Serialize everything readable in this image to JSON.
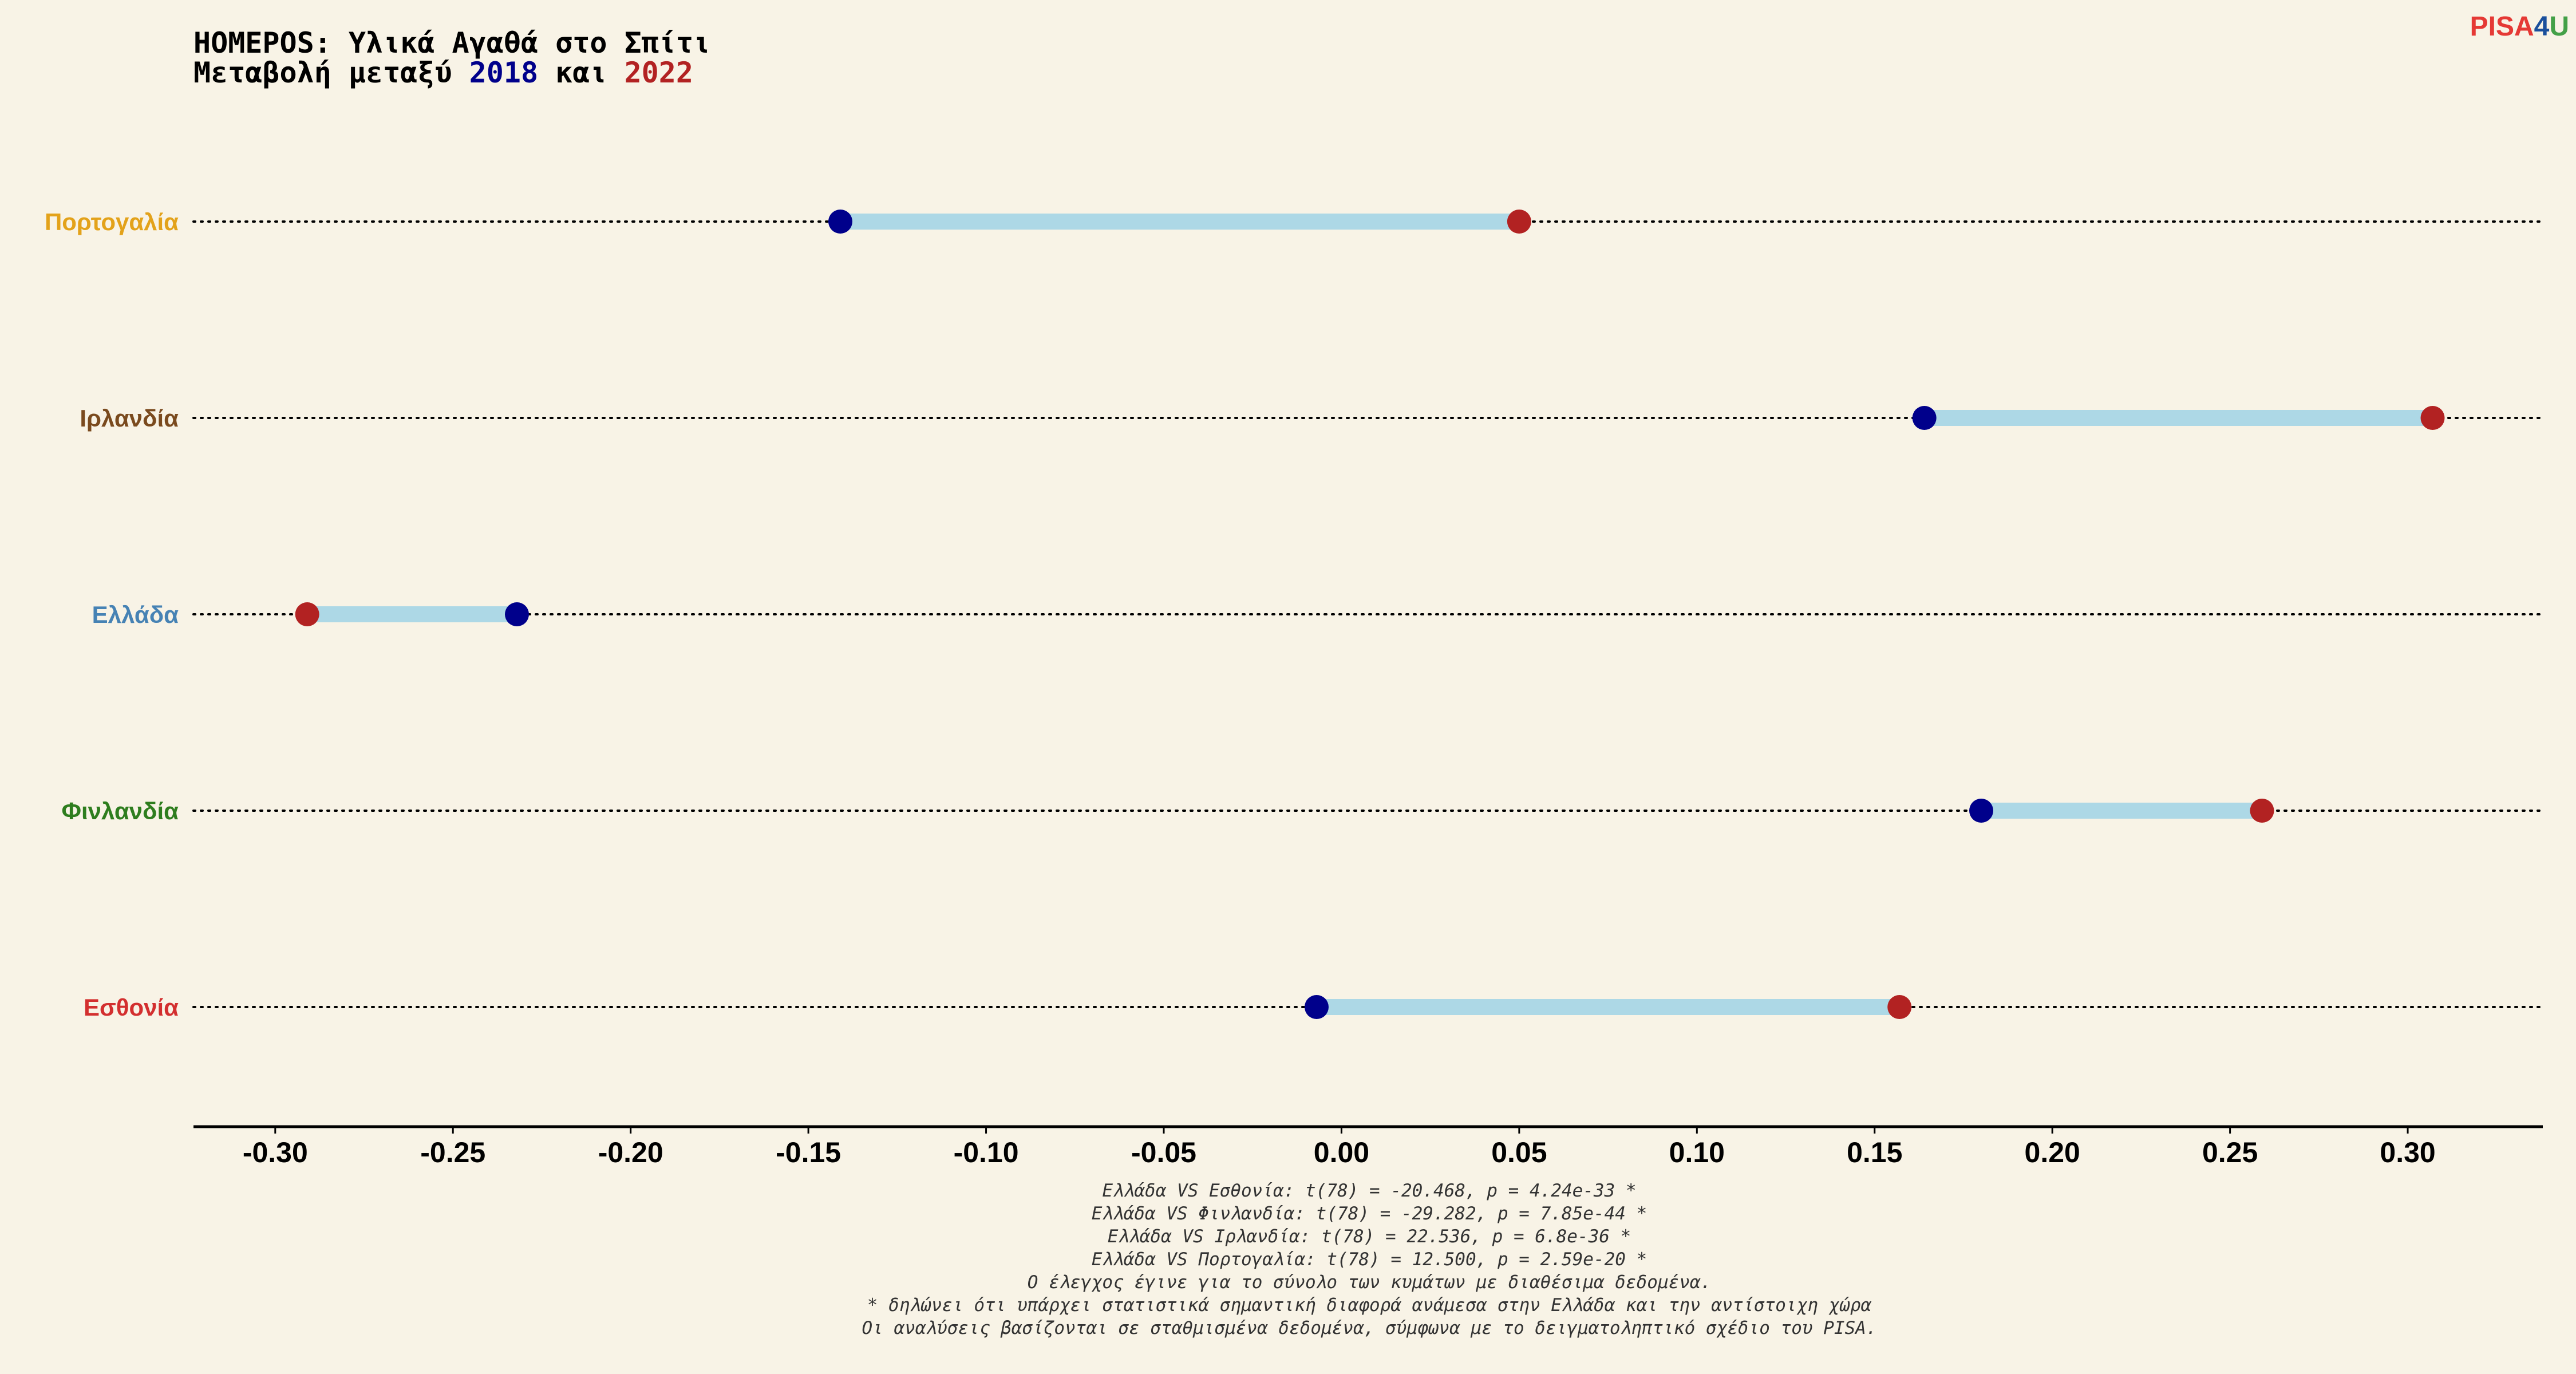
{
  "title": {
    "line1": "HOMEPOS: Υλικά Αγαθά στο Σπίτι",
    "line2_prefix": "Μεταβολή μεταξύ ",
    "year_start": "2018",
    "line2_mid": " και ",
    "year_end": "2022"
  },
  "logo": {
    "prefix": "PISA",
    "digit": "4",
    "suffix": "U",
    "colors": {
      "prefix": "#E53935",
      "digit": "#1A4F9C",
      "suffix": "#43A047"
    }
  },
  "colors": {
    "start": "#00008B",
    "end": "#B22222",
    "connector": "#ADD8E6",
    "guide": "#000000",
    "axis": "#000000"
  },
  "chart_data": {
    "type": "dumbbell",
    "title": "HOMEPOS: Υλικά Αγαθά στο Σπίτι — Μεταβολή μεταξύ 2018 και 2022",
    "xlim": [
      -0.323,
      0.338
    ],
    "xticks": [
      -0.3,
      -0.25,
      -0.2,
      -0.15,
      -0.1,
      -0.05,
      0.0,
      0.05,
      0.1,
      0.15,
      0.2,
      0.25,
      0.3
    ],
    "xtick_labels": [
      "-0.30",
      "-0.25",
      "-0.20",
      "-0.15",
      "-0.10",
      "-0.05",
      "0.00",
      "0.05",
      "0.10",
      "0.15",
      "0.20",
      "0.25",
      "0.30"
    ],
    "grid": false,
    "guide_lines": "dotted",
    "series_names": [
      "2018",
      "2022"
    ],
    "categories": [
      {
        "name": "Πορτογαλία",
        "color": "#E3A21A",
        "v2018": -0.141,
        "v2022": 0.05
      },
      {
        "name": "Ιρλανδία",
        "color": "#7A4A1E",
        "v2018": 0.164,
        "v2022": 0.307
      },
      {
        "name": "Ελλάδα",
        "color": "#4682B4",
        "v2018": -0.232,
        "v2022": -0.291
      },
      {
        "name": "Φινλανδία",
        "color": "#2E7D1E",
        "v2018": 0.18,
        "v2022": 0.259
      },
      {
        "name": "Εσθονία",
        "color": "#D32F2F",
        "v2018": -0.007,
        "v2022": 0.157
      }
    ]
  },
  "notes": [
    "Ελλάδα VS Εσθονία: t(78) = -20.468, p = 4.24e-33 *",
    "Ελλάδα VS Φινλανδία: t(78) = -29.282, p = 7.85e-44 *",
    "Ελλάδα VS Ιρλανδία: t(78) = 22.536, p = 6.8e-36 *",
    "Ελλάδα VS Πορτογαλία: t(78) = 12.500, p = 2.59e-20 *",
    "Ο έλεγχος έγινε για το σύνολο των κυμάτων με διαθέσιμα δεδομένα.",
    "* δηλώνει ότι υπάρχει στατιστικά σημαντική διαφορά ανάμεσα στην Ελλάδα και την αντίστοιχη χώρα",
    "Οι αναλύσεις βασίζονται σε σταθμισμένα δεδομένα, σύμφωνα με το δειγματοληπτικό σχέδιο του PISA."
  ]
}
